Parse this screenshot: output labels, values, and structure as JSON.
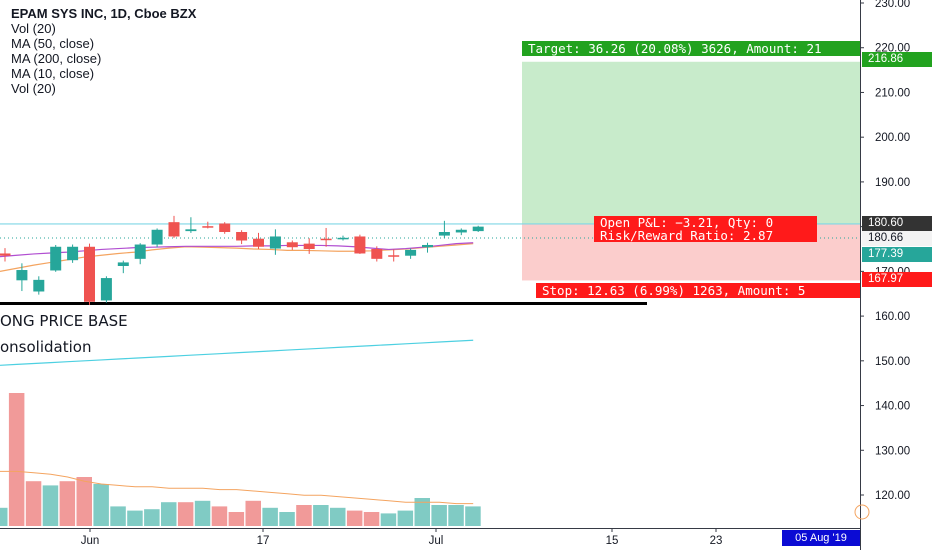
{
  "chart_data": {
    "type": "candlestick",
    "legend": {
      "title": "EPAM SYS INC, 1D, Cboe BZX",
      "lines": [
        "Vol (20)",
        "MA (50, close)",
        "MA (200, close)",
        "MA (10, close)",
        "Vol (20)"
      ]
    },
    "annotations": {
      "base_label": "ONG PRICE BASE",
      "consolidation_label": "onsolidation"
    },
    "y_axis": {
      "ticks": [
        "230.00",
        "220.00",
        "210.00",
        "200.00",
        "190.00",
        "180.00",
        "170.00",
        "160.00",
        "150.00",
        "140.00",
        "130.00",
        "120.00"
      ],
      "tick_values": [
        230,
        220,
        210,
        200,
        190,
        180,
        170,
        160,
        150,
        140,
        130,
        120
      ],
      "range": [
        113,
        231
      ]
    },
    "x_axis": {
      "tick_labels": [
        "Jun",
        "17",
        "Jul",
        "15",
        "23"
      ],
      "date_badge": "05 Aug '19"
    },
    "price_labels": {
      "target": "216.86",
      "resistance": "180.60",
      "last": "180.66",
      "ma": "177.39",
      "stop": "167.97"
    },
    "position": {
      "target_text": "Target: 36.26 (20.08%) 3626, Amount: 21",
      "stop_text": "Stop: 12.63 (6.99%) 1263, Amount: 5",
      "open_pl_text": "Open P&L: −3.21, Qty: 0",
      "risk_reward_text": "Risk/Reward Ratio: 2.87",
      "entry": 180.6,
      "target": 216.86,
      "stop": 167.97
    },
    "levels": {
      "resistance": 180.6,
      "support": 162.9
    },
    "candles": [
      {
        "o": 174.0,
        "h": 175.2,
        "l": 172.2,
        "c": 173.5
      },
      {
        "o": 168.0,
        "h": 171.8,
        "l": 165.6,
        "c": 170.3
      },
      {
        "o": 165.5,
        "h": 168.9,
        "l": 164.8,
        "c": 168.1
      },
      {
        "o": 170.2,
        "h": 175.9,
        "l": 169.9,
        "c": 175.5
      },
      {
        "o": 172.5,
        "h": 176.0,
        "l": 171.9,
        "c": 175.5
      },
      {
        "o": 175.5,
        "h": 176.2,
        "l": 162.5,
        "c": 163.2
      },
      {
        "o": 163.5,
        "h": 168.9,
        "l": 163.0,
        "c": 168.5
      },
      {
        "o": 171.2,
        "h": 172.4,
        "l": 169.6,
        "c": 172.0
      },
      {
        "o": 172.8,
        "h": 176.3,
        "l": 171.6,
        "c": 176.0
      },
      {
        "o": 176.0,
        "h": 179.6,
        "l": 175.4,
        "c": 179.3
      },
      {
        "o": 181.0,
        "h": 182.4,
        "l": 177.5,
        "c": 177.8
      },
      {
        "o": 179.0,
        "h": 182.1,
        "l": 178.6,
        "c": 179.4
      },
      {
        "o": 180.1,
        "h": 181.1,
        "l": 179.6,
        "c": 179.8
      },
      {
        "o": 180.7,
        "h": 181.0,
        "l": 178.4,
        "c": 178.8
      },
      {
        "o": 178.8,
        "h": 179.2,
        "l": 176.1,
        "c": 176.9
      },
      {
        "o": 177.3,
        "h": 178.6,
        "l": 175.0,
        "c": 175.5
      },
      {
        "o": 175.1,
        "h": 179.4,
        "l": 173.7,
        "c": 177.8
      },
      {
        "o": 176.5,
        "h": 176.9,
        "l": 174.8,
        "c": 175.4
      },
      {
        "o": 176.2,
        "h": 177.4,
        "l": 173.9,
        "c": 175.0
      },
      {
        "o": 177.3,
        "h": 179.7,
        "l": 175.5,
        "c": 177.1
      },
      {
        "o": 177.5,
        "h": 178.0,
        "l": 176.9,
        "c": 177.5
      },
      {
        "o": 177.8,
        "h": 178.2,
        "l": 173.9,
        "c": 174.0
      },
      {
        "o": 175.0,
        "h": 175.6,
        "l": 172.2,
        "c": 172.8
      },
      {
        "o": 173.6,
        "h": 174.9,
        "l": 172.2,
        "c": 173.4
      },
      {
        "o": 173.5,
        "h": 175.1,
        "l": 172.8,
        "c": 174.8
      },
      {
        "o": 175.4,
        "h": 176.4,
        "l": 174.2,
        "c": 175.9
      },
      {
        "o": 178.0,
        "h": 181.3,
        "l": 177.4,
        "c": 178.8
      },
      {
        "o": 178.7,
        "h": 179.6,
        "l": 178.1,
        "c": 179.3
      },
      {
        "o": 179.0,
        "h": 180.2,
        "l": 178.8,
        "c": 180.0
      }
    ],
    "ma_upper": [
      173.3,
      173.6,
      173.9,
      174.1,
      174.3,
      174.6,
      174.9,
      175.1,
      175.3,
      175.4,
      175.5,
      175.6,
      175.6,
      175.6,
      175.6,
      175.7,
      175.7,
      175.8,
      175.8,
      175.8,
      175.7,
      175.5,
      175.2,
      174.9,
      175.1,
      175.4,
      175.8,
      176.2,
      176.4
    ],
    "ma_lower": [
      170.0,
      170.7,
      171.4,
      172.0,
      172.6,
      173.2,
      173.6,
      174.0,
      174.3,
      174.8,
      175.2,
      175.5,
      175.4,
      175.3,
      175.2,
      175.0,
      174.9,
      174.7,
      174.7,
      174.6,
      174.5,
      174.5,
      174.6,
      174.8,
      175.0,
      175.3,
      175.6,
      175.9,
      176.2
    ],
    "ma_volume": [
      171.0,
      171.4,
      171.6,
      172.0,
      172.4,
      173.0,
      173.4,
      173.8,
      174.2,
      174.9,
      175.4,
      176.5,
      177.1,
      176.8,
      176.7,
      176.3,
      176.6,
      176.8,
      176.4,
      176.3,
      176.2,
      175.7,
      175.3,
      175.0,
      174.8,
      175.2,
      175.5,
      175.9,
      176.2
    ],
    "volume": [
      {
        "v": 0.13,
        "up": true
      },
      {
        "v": 0.95,
        "up": false
      },
      {
        "v": 0.32,
        "up": false
      },
      {
        "v": 0.29,
        "up": true
      },
      {
        "v": 0.32,
        "up": false
      },
      {
        "v": 0.35,
        "up": false
      },
      {
        "v": 0.3,
        "up": true
      },
      {
        "v": 0.14,
        "up": true
      },
      {
        "v": 0.11,
        "up": true
      },
      {
        "v": 0.12,
        "up": true
      },
      {
        "v": 0.17,
        "up": true
      },
      {
        "v": 0.17,
        "up": false
      },
      {
        "v": 0.18,
        "up": true
      },
      {
        "v": 0.14,
        "up": false
      },
      {
        "v": 0.1,
        "up": false
      },
      {
        "v": 0.18,
        "up": false
      },
      {
        "v": 0.13,
        "up": true
      },
      {
        "v": 0.1,
        "up": true
      },
      {
        "v": 0.15,
        "up": false
      },
      {
        "v": 0.15,
        "up": true
      },
      {
        "v": 0.13,
        "up": true
      },
      {
        "v": 0.11,
        "up": false
      },
      {
        "v": 0.1,
        "up": false
      },
      {
        "v": 0.09,
        "up": true
      },
      {
        "v": 0.11,
        "up": true
      },
      {
        "v": 0.2,
        "up": true
      },
      {
        "v": 0.15,
        "up": true
      },
      {
        "v": 0.15,
        "up": true
      },
      {
        "v": 0.14,
        "up": true
      }
    ],
    "volume_ma": [
      0.39,
      0.39,
      0.38,
      0.37,
      0.35,
      0.32,
      0.3,
      0.29,
      0.28,
      0.28,
      0.27,
      0.27,
      0.27,
      0.26,
      0.26,
      0.25,
      0.24,
      0.23,
      0.22,
      0.22,
      0.21,
      0.2,
      0.19,
      0.18,
      0.17,
      0.17,
      0.17,
      0.16,
      0.16
    ],
    "ma_long": [
      149.0,
      149.2,
      149.4,
      149.6,
      149.8,
      150.0,
      150.2,
      150.4,
      150.6,
      150.8,
      151.0,
      151.2,
      151.4,
      151.6,
      151.8,
      152.0,
      152.2,
      152.4,
      152.6,
      152.8,
      153.0,
      153.2,
      153.4,
      153.6,
      153.8,
      154.0,
      154.2,
      154.4,
      154.6
    ],
    "colors": {
      "up": "#26a69a",
      "down": "#ef5350",
      "volume_up": "#80cbc4",
      "volume_down": "#f19a99",
      "ma_violet": "#b14ed1",
      "ma_orange": "#f4a460",
      "ma_cyan": "#4dd0e1",
      "target_zone": "#c8ebcb",
      "stop_zone": "#fbcdcc",
      "green_tag": "#22a21f",
      "red_tag": "#ff1a1a",
      "resistance": "#7fd6e5",
      "dark_tag": "#333333",
      "ma_tag": "#26a69a",
      "date_badge": "#0b0bd4"
    }
  }
}
